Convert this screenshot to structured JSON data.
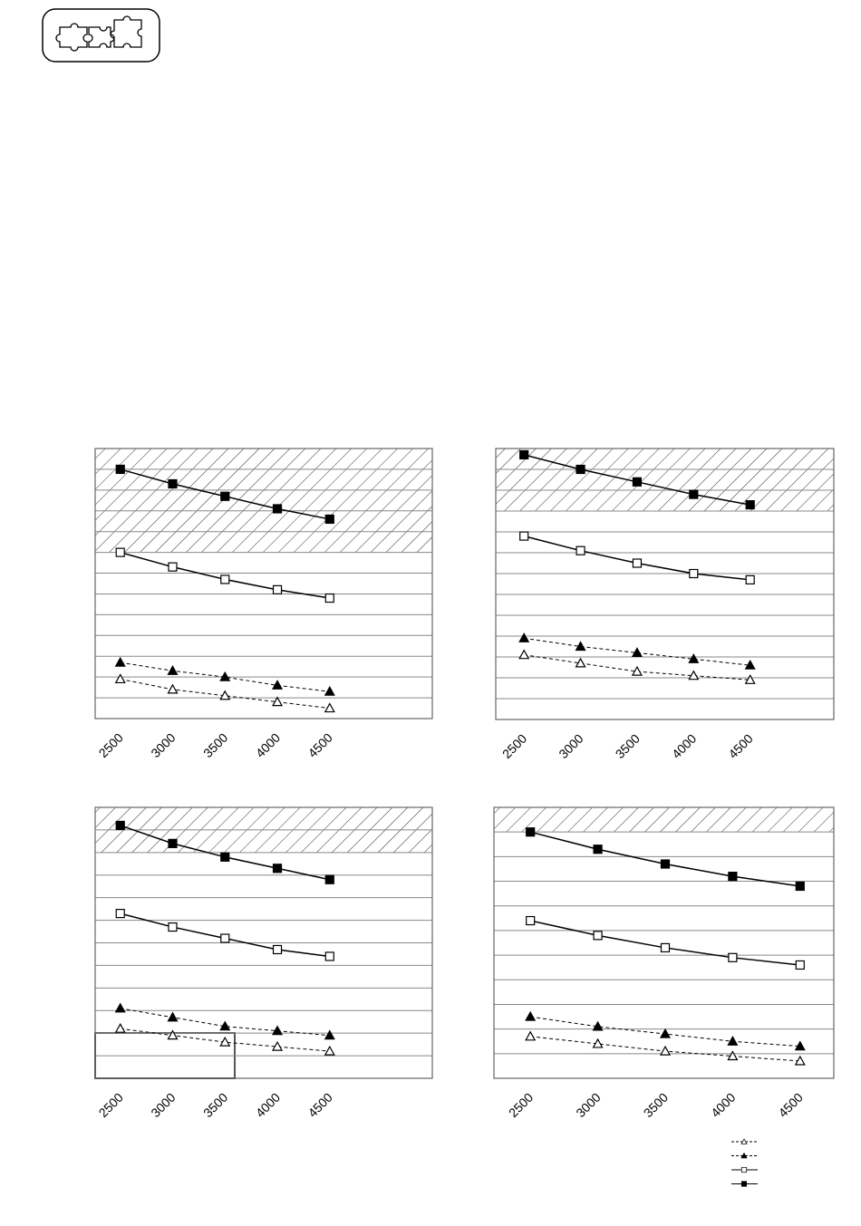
{
  "chart_data": [
    {
      "type": "line",
      "x": [
        2500,
        3000,
        3500,
        4000,
        4500
      ],
      "xlim": [
        2260,
        5480
      ],
      "xticks": [
        2500,
        3000,
        3500,
        4000,
        4500
      ],
      "ylim": [
        0,
        13
      ],
      "grid_lines": [
        0,
        1,
        2,
        3,
        4,
        5,
        6,
        7,
        8,
        9,
        10,
        11,
        12,
        13
      ],
      "hatch": [
        8,
        13
      ],
      "series": [
        {
          "color": "#000000",
          "marker": "triangle-open",
          "dashed": true,
          "values": [
            1.9,
            1.4,
            1.1,
            0.8,
            0.5
          ]
        },
        {
          "color": "#000000",
          "marker": "triangle-filled",
          "dashed": true,
          "values": [
            2.7,
            2.3,
            2.0,
            1.6,
            1.3
          ]
        },
        {
          "color": "#000000",
          "marker": "square-open",
          "dashed": false,
          "values": [
            8.0,
            7.3,
            6.7,
            6.2,
            5.8
          ]
        },
        {
          "color": "#000000",
          "marker": "square-filled",
          "dashed": false,
          "values": [
            12.0,
            11.3,
            10.7,
            10.1,
            9.6
          ]
        }
      ]
    },
    {
      "type": "line",
      "x": [
        2500,
        3000,
        3500,
        4000,
        4500
      ],
      "xlim": [
        2250,
        5240
      ],
      "xticks": [
        2500,
        3000,
        3500,
        4000,
        4500
      ],
      "ylim": [
        0,
        13
      ],
      "grid_lines": [
        0,
        1,
        2,
        3,
        4,
        5,
        6,
        7,
        8,
        9,
        10,
        11,
        12,
        13
      ],
      "hatch": [
        10,
        13
      ],
      "series": [
        {
          "color": "#000000",
          "marker": "triangle-open",
          "dashed": true,
          "values": [
            3.1,
            2.7,
            2.3,
            2.1,
            1.9
          ]
        },
        {
          "color": "#000000",
          "marker": "triangle-filled",
          "dashed": true,
          "values": [
            3.9,
            3.5,
            3.2,
            2.9,
            2.6
          ]
        },
        {
          "color": "#000000",
          "marker": "square-open",
          "dashed": false,
          "values": [
            8.8,
            8.1,
            7.5,
            7.0,
            6.7
          ]
        },
        {
          "color": "#000000",
          "marker": "square-filled",
          "dashed": false,
          "values": [
            12.7,
            12.0,
            11.4,
            10.8,
            10.3
          ]
        }
      ]
    },
    {
      "type": "line",
      "x": [
        2500,
        3000,
        3500,
        4000,
        4500
      ],
      "xlim": [
        2260,
        5480
      ],
      "xticks": [
        2500,
        3000,
        3500,
        4000,
        4500
      ],
      "ylim": [
        0,
        12
      ],
      "grid_lines": [
        0,
        1,
        2,
        3,
        4,
        5,
        6,
        7,
        8,
        9,
        10,
        11,
        12
      ],
      "hatch": [
        10,
        12
      ],
      "series": [
        {
          "color": "#000000",
          "marker": "triangle-open",
          "dashed": true,
          "values": [
            2.2,
            1.9,
            1.6,
            1.4,
            1.2
          ]
        },
        {
          "color": "#000000",
          "marker": "triangle-filled",
          "dashed": true,
          "values": [
            3.1,
            2.7,
            2.3,
            2.1,
            1.9
          ]
        },
        {
          "color": "#000000",
          "marker": "square-open",
          "dashed": false,
          "values": [
            7.3,
            6.7,
            6.2,
            5.7,
            5.4
          ]
        },
        {
          "color": "#000000",
          "marker": "square-filled",
          "dashed": false,
          "values": [
            11.2,
            10.4,
            9.8,
            9.3,
            8.8
          ]
        }
      ]
    },
    {
      "type": "line",
      "x": [
        2500,
        3000,
        3500,
        4000,
        4500
      ],
      "xlim": [
        2230,
        4750
      ],
      "xticks": [
        2500,
        3000,
        3500,
        4000,
        4500
      ],
      "ylim": [
        0,
        11
      ],
      "grid_lines": [
        0,
        1,
        2,
        3,
        4,
        5,
        6,
        7,
        8,
        9,
        10,
        11
      ],
      "hatch": [
        10,
        11
      ],
      "series": [
        {
          "color": "#000000",
          "marker": "triangle-open",
          "dashed": true,
          "values": [
            1.7,
            1.4,
            1.1,
            0.9,
            0.7
          ]
        },
        {
          "color": "#000000",
          "marker": "triangle-filled",
          "dashed": true,
          "values": [
            2.5,
            2.1,
            1.8,
            1.5,
            1.3
          ]
        },
        {
          "color": "#000000",
          "marker": "square-open",
          "dashed": false,
          "values": [
            6.4,
            5.8,
            5.3,
            4.9,
            4.6
          ]
        },
        {
          "color": "#000000",
          "marker": "square-filled",
          "dashed": false,
          "values": [
            10.0,
            9.3,
            8.7,
            8.2,
            7.8
          ]
        }
      ]
    }
  ]
}
